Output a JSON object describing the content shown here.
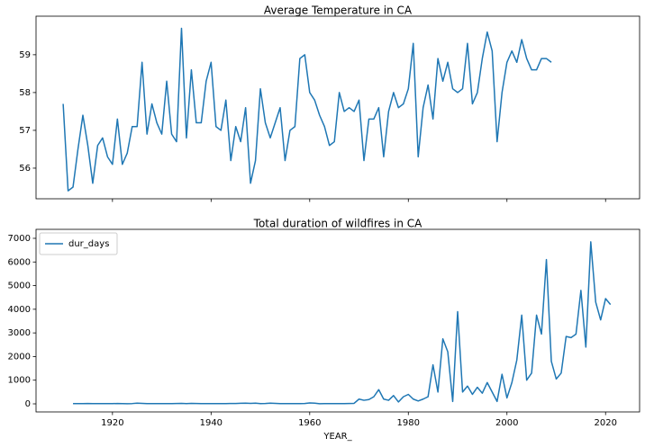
{
  "chart_data": [
    {
      "type": "line",
      "title": "Average Temperature in CA",
      "sharex": true,
      "xlim": [
        1904.5,
        2026.9
      ],
      "xticks": [
        1920,
        1940,
        1960,
        1980,
        2000,
        2020
      ],
      "ylim": [
        55.19,
        60.02
      ],
      "yticks": [
        56,
        57,
        58,
        59
      ],
      "series": [
        {
          "color": "#1f77b4",
          "x": [
            1910,
            1911,
            1912,
            1913,
            1914,
            1915,
            1916,
            1917,
            1918,
            1919,
            1920,
            1921,
            1922,
            1923,
            1924,
            1925,
            1926,
            1927,
            1928,
            1929,
            1930,
            1931,
            1932,
            1933,
            1934,
            1935,
            1936,
            1937,
            1938,
            1939,
            1940,
            1941,
            1942,
            1943,
            1944,
            1945,
            1946,
            1947,
            1948,
            1949,
            1950,
            1951,
            1952,
            1953,
            1954,
            1955,
            1956,
            1957,
            1958,
            1959,
            1960,
            1961,
            1962,
            1963,
            1964,
            1965,
            1966,
            1967,
            1968,
            1969,
            1970,
            1971,
            1972,
            1973,
            1974,
            1975,
            1976,
            1977,
            1978,
            1979,
            1980,
            1981,
            1982,
            1983,
            1984,
            1985,
            1986,
            1987,
            1988,
            1989,
            1990,
            1991,
            1992,
            1993,
            1994,
            1995,
            1996,
            1997,
            1998,
            1999,
            2000,
            2001,
            2002,
            2003,
            2004,
            2005,
            2006,
            2007,
            2008,
            2009
          ],
          "values": [
            57.7,
            55.4,
            55.5,
            56.5,
            57.4,
            56.6,
            55.6,
            56.6,
            56.8,
            56.3,
            56.1,
            57.3,
            56.1,
            56.4,
            57.1,
            57.1,
            58.8,
            56.9,
            57.7,
            57.2,
            56.9,
            58.3,
            56.9,
            56.7,
            59.7,
            56.8,
            58.6,
            57.2,
            57.2,
            58.3,
            58.8,
            57.1,
            57.0,
            57.8,
            56.2,
            57.1,
            56.7,
            57.6,
            55.6,
            56.2,
            58.1,
            57.2,
            56.8,
            57.2,
            57.6,
            56.2,
            57.0,
            57.1,
            58.9,
            59.0,
            58.0,
            57.8,
            57.4,
            57.1,
            56.6,
            56.7,
            58.0,
            57.5,
            57.6,
            57.5,
            57.8,
            56.2,
            57.3,
            57.3,
            57.6,
            56.3,
            57.5,
            58.0,
            57.6,
            57.7,
            58.1,
            59.3,
            56.3,
            57.6,
            58.2,
            57.3,
            58.9,
            58.3,
            58.8,
            58.1,
            58.0,
            58.1,
            59.3,
            57.7,
            58.0,
            58.9,
            59.6,
            59.1,
            56.7,
            58.0,
            58.8,
            59.1,
            58.8,
            59.4,
            58.9,
            58.6,
            58.6,
            58.9,
            58.9,
            58.8
          ]
        }
      ]
    },
    {
      "type": "line",
      "title": "Total duration of wildfires in CA",
      "xlabel": "YEAR_",
      "legend": "upper left",
      "xlim": [
        1904.5,
        2026.9
      ],
      "xticks": [
        1920,
        1940,
        1960,
        1980,
        2000,
        2020
      ],
      "ylim": [
        -342,
        7380
      ],
      "yticks": [
        0,
        1000,
        2000,
        3000,
        4000,
        5000,
        6000,
        7000
      ],
      "series": [
        {
          "name": "dur_days",
          "color": "#1f77b4",
          "x": [
            1912,
            1913,
            1914,
            1915,
            1916,
            1917,
            1918,
            1919,
            1920,
            1921,
            1922,
            1923,
            1924,
            1925,
            1926,
            1927,
            1928,
            1929,
            1930,
            1931,
            1932,
            1933,
            1934,
            1935,
            1936,
            1937,
            1938,
            1939,
            1940,
            1941,
            1942,
            1943,
            1944,
            1945,
            1946,
            1947,
            1948,
            1949,
            1950,
            1951,
            1952,
            1953,
            1954,
            1955,
            1956,
            1957,
            1958,
            1959,
            1960,
            1961,
            1962,
            1963,
            1964,
            1965,
            1966,
            1967,
            1968,
            1969,
            1970,
            1971,
            1972,
            1973,
            1974,
            1975,
            1976,
            1977,
            1978,
            1979,
            1980,
            1981,
            1982,
            1983,
            1984,
            1985,
            1986,
            1987,
            1988,
            1989,
            1990,
            1991,
            1992,
            1993,
            1994,
            1995,
            1996,
            1997,
            1998,
            1999,
            2000,
            2001,
            2002,
            2003,
            2004,
            2005,
            2006,
            2007,
            2008,
            2009,
            2010,
            2011,
            2012,
            2013,
            2014,
            2015,
            2016,
            2017,
            2018,
            2019,
            2020,
            2021
          ],
          "values": [
            10,
            12,
            8,
            15,
            10,
            12,
            9,
            11,
            10,
            14,
            8,
            5,
            12,
            30,
            20,
            10,
            8,
            9,
            12,
            10,
            8,
            15,
            20,
            12,
            18,
            15,
            10,
            8,
            12,
            10,
            9,
            11,
            14,
            15,
            25,
            30,
            20,
            28,
            10,
            15,
            30,
            18,
            10,
            8,
            12,
            10,
            9,
            15,
            40,
            30,
            5,
            8,
            10,
            12,
            8,
            10,
            15,
            20,
            200,
            150,
            180,
            300,
            600,
            200,
            150,
            350,
            80,
            300,
            400,
            200,
            120,
            200,
            300,
            1650,
            500,
            2750,
            2200,
            100,
            3900,
            500,
            750,
            400,
            700,
            450,
            900,
            500,
            100,
            1250,
            250,
            900,
            1850,
            3750,
            1000,
            1300,
            3750,
            2950,
            6100,
            1800,
            1050,
            1300,
            2850,
            2800,
            2950,
            4800,
            2400,
            6850,
            4300,
            3550,
            4450,
            4200
          ]
        }
      ]
    }
  ]
}
